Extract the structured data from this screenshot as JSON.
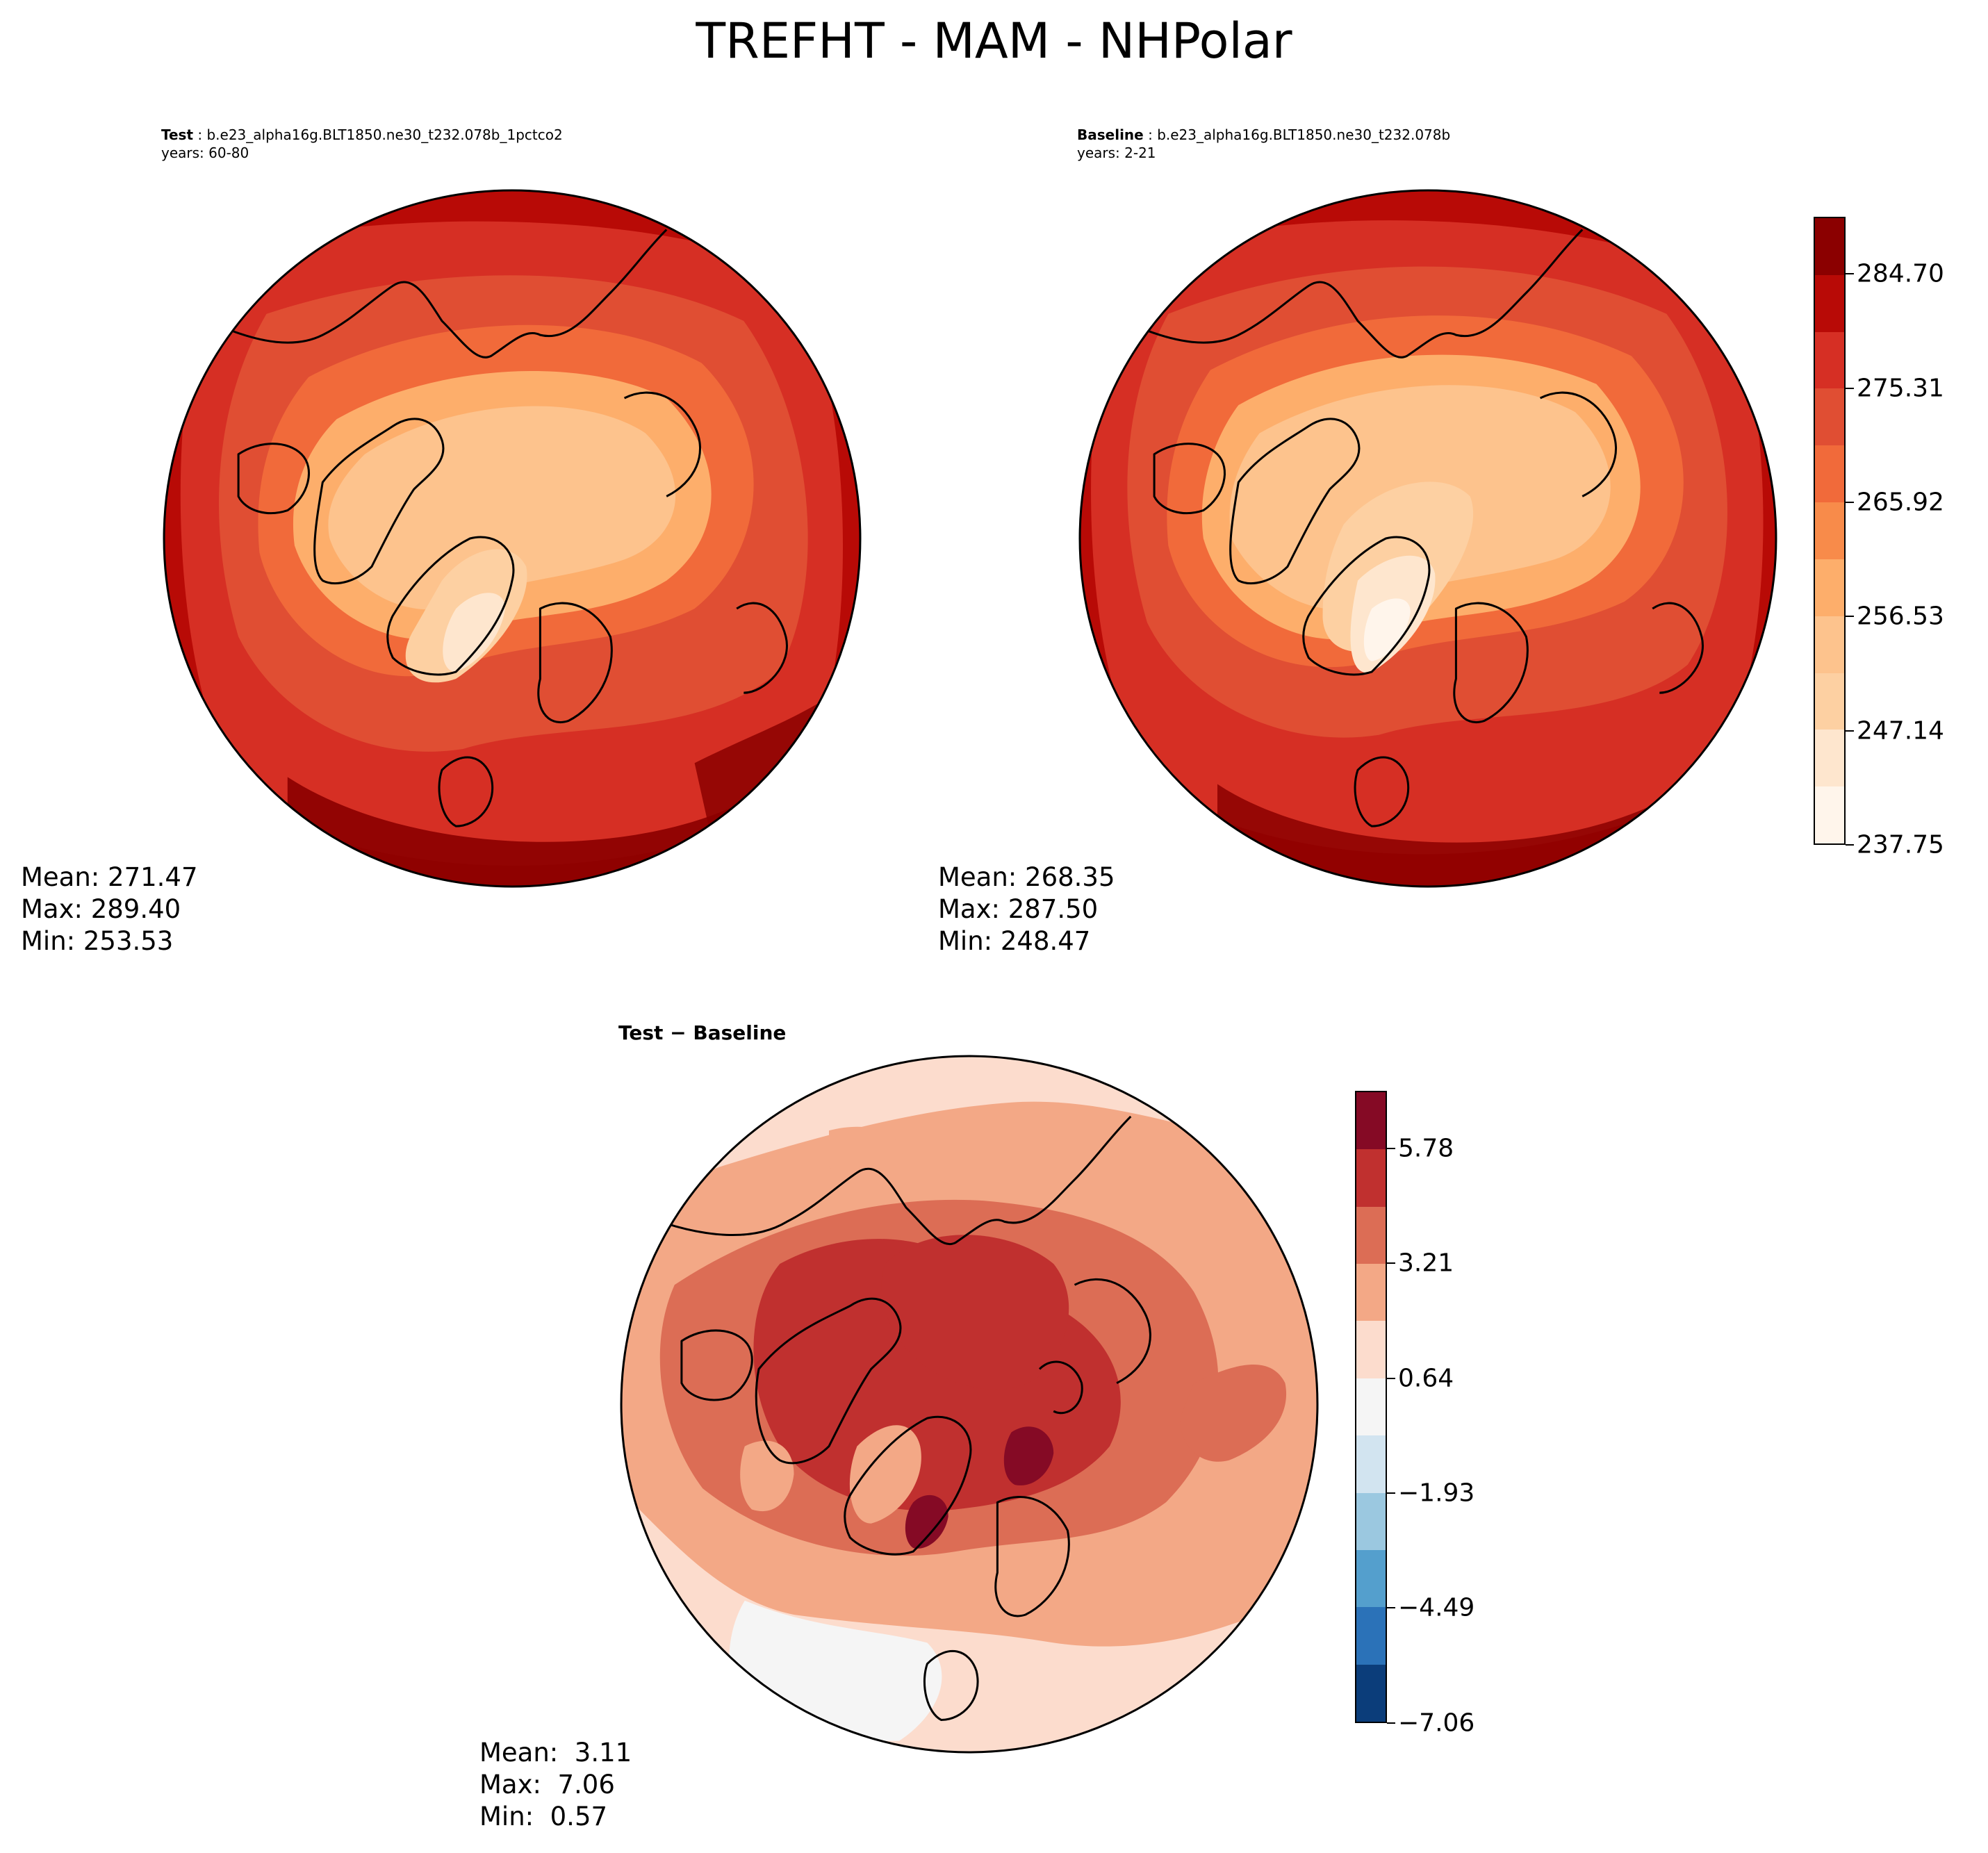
{
  "figure": {
    "title": "TREFHT - MAM - NHPolar"
  },
  "panels": {
    "test": {
      "label": "Test",
      "case": " : b.e23_alpha16g.BLT1850.ne30_t232.078b_1pctco2",
      "years": "years: 60-80",
      "mean": "Mean: 271.47",
      "max": "Max: 289.40",
      "min": "Min: 253.53"
    },
    "baseline": {
      "label": "Baseline",
      "case": " : b.e23_alpha16g.BLT1850.ne30_t232.078b",
      "years": "years: 2-21",
      "mean": "Mean: 268.35",
      "max": "Max: 287.50",
      "min": "Min: 248.47"
    },
    "diff": {
      "title": "Test − Baseline",
      "mean": "Mean:  3.11",
      "max": "Max:  7.06",
      "min": "Min:  0.57"
    }
  },
  "colorbars": {
    "absolute": {
      "ticks": [
        "284.70",
        "275.31",
        "265.92",
        "256.53",
        "247.14",
        "237.75"
      ],
      "colors": [
        "#fff5eb",
        "#fee6ce",
        "#fdd0a2",
        "#fdc38d",
        "#fdae6b",
        "#f88b4a",
        "#f16a3a",
        "#e04e33",
        "#d62f24",
        "#b80a06",
        "#8b0000"
      ]
    },
    "difference": {
      "ticks": [
        "5.78",
        "3.21",
        "0.64",
        "−1.93",
        "−4.49",
        "−7.06"
      ],
      "colors": [
        "#0b3d7a",
        "#2b72b8",
        "#549fcd",
        "#9bc8e0",
        "#d2e4f0",
        "#f5f5f5",
        "#fcdccd",
        "#f3a886",
        "#dc6d55",
        "#c0302f",
        "#850a25"
      ]
    }
  }
}
